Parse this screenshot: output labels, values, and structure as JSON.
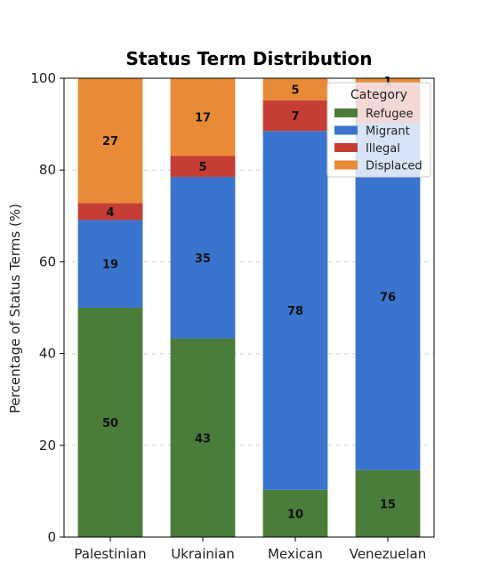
{
  "chart_data": {
    "type": "bar",
    "stacked": true,
    "title": "Status Term Distribution",
    "xlabel": "",
    "ylabel": "Percentage of Status Terms (%)",
    "ylim": [
      0,
      100
    ],
    "yticks": [
      0,
      20,
      40,
      60,
      80,
      100
    ],
    "grid": "y-dashed",
    "categories": [
      "Palestinian",
      "Ukrainian",
      "Mexican",
      "Venezuelan"
    ],
    "series": [
      {
        "name": "Refugee",
        "color": "#4a7c3a",
        "values": [
          50,
          43.3,
          10.3,
          14.6
        ],
        "labels": [
          "50",
          "43",
          "10",
          "15"
        ]
      },
      {
        "name": "Migrant",
        "color": "#3a74cf",
        "values": [
          19.1,
          35.2,
          78.2,
          75.7
        ],
        "labels": [
          "19",
          "35",
          "78",
          "76"
        ]
      },
      {
        "name": "Illegal",
        "color": "#c53d35",
        "values": [
          3.7,
          4.6,
          6.7,
          8.5
        ],
        "labels": [
          "4",
          "5",
          "7",
          ""
        ]
      },
      {
        "name": "Displaced",
        "color": "#e98a36",
        "values": [
          27.2,
          16.9,
          4.8,
          1.2
        ],
        "labels": [
          "27",
          "17",
          "5",
          "1"
        ]
      }
    ],
    "legend": {
      "title": "Category",
      "position": "top-right"
    }
  }
}
